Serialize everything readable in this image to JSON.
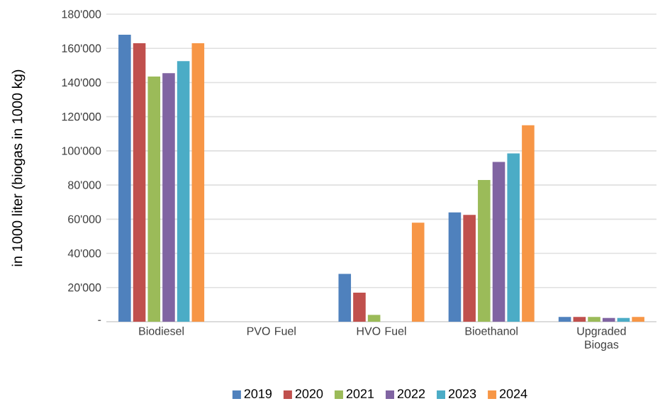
{
  "chart_data": {
    "type": "bar",
    "ylabel": "in 1000 liter  (biogas in 1000 kg)",
    "categories": [
      "Biodiesel",
      "PVO Fuel",
      "HVO Fuel",
      "Bioethanol",
      "Upgraded Biogas"
    ],
    "series": [
      {
        "name": "2019",
        "color": "#4f81bd",
        "values": [
          168000,
          0,
          28000,
          64000,
          2800
        ]
      },
      {
        "name": "2020",
        "color": "#c0504d",
        "values": [
          163000,
          0,
          17000,
          62500,
          2800
        ]
      },
      {
        "name": "2021",
        "color": "#9bbb59",
        "values": [
          143500,
          0,
          4000,
          83000,
          2800
        ]
      },
      {
        "name": "2022",
        "color": "#8064a2",
        "values": [
          145500,
          0,
          0,
          93500,
          2200
        ]
      },
      {
        "name": "2023",
        "color": "#4bacc6",
        "values": [
          152500,
          0,
          0,
          98500,
          2200
        ]
      },
      {
        "name": "2024",
        "color": "#f79646",
        "values": [
          163000,
          0,
          58000,
          115000,
          2800
        ]
      }
    ],
    "ylim": [
      0,
      180000
    ],
    "yticks": [
      {
        "value": 0,
        "label": "-"
      },
      {
        "value": 20000,
        "label": "20'000"
      },
      {
        "value": 40000,
        "label": "40'000"
      },
      {
        "value": 60000,
        "label": "60'000"
      },
      {
        "value": 80000,
        "label": "80'000"
      },
      {
        "value": 100000,
        "label": "100'000"
      },
      {
        "value": 120000,
        "label": "120'000"
      },
      {
        "value": 140000,
        "label": "140'000"
      },
      {
        "value": 160000,
        "label": "160'000"
      },
      {
        "value": 180000,
        "label": "180'000"
      }
    ],
    "grid": "y",
    "legend": "bottom"
  }
}
